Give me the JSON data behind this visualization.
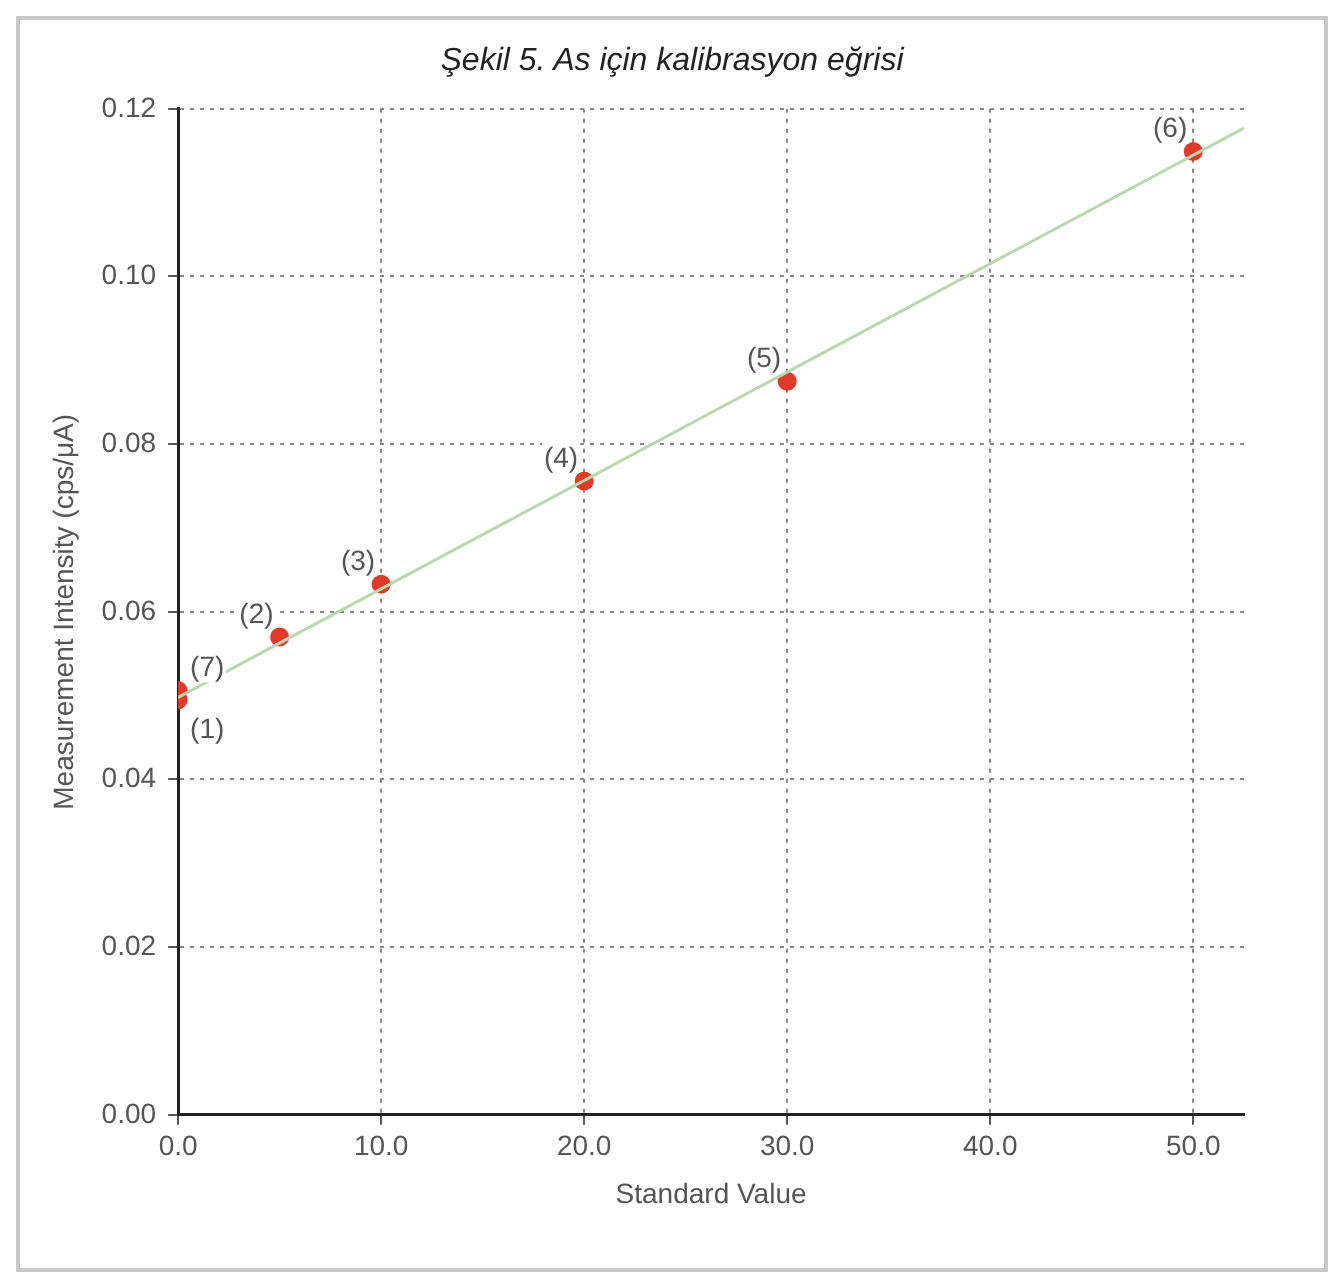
{
  "chart_data": {
    "type": "scatter",
    "title": "Şekil 5.  As için kalibrasyon eğrisi",
    "xlabel": "Standard Value",
    "ylabel": "Measurement Intensity (cps/μA)",
    "series": [
      {
        "type": "line",
        "color": "#b9d8ae",
        "x": [
          0,
          52.5
        ],
        "values": [
          0.0498,
          0.1177
        ],
        "marker": "none"
      },
      {
        "type": "scatter",
        "color": "#e03a2a",
        "x": [
          0,
          5,
          10,
          20,
          30,
          50,
          0
        ],
        "values": [
          0.0495,
          0.057,
          0.0633,
          0.0756,
          0.0875,
          0.1149,
          0.0506
        ],
        "marker": "circle"
      }
    ],
    "xlim": [
      0,
      52.5
    ],
    "ylim": [
      0,
      0.12
    ],
    "xticks": [
      {
        "value": 0,
        "label": "0.0"
      },
      {
        "value": 10,
        "label": "10.0"
      },
      {
        "value": 20,
        "label": "20.0"
      },
      {
        "value": 30,
        "label": "30.0"
      },
      {
        "value": 40,
        "label": "40.0"
      },
      {
        "value": 50,
        "label": "50.0"
      }
    ],
    "yticks": [
      {
        "value": 0,
        "label": "0.00"
      },
      {
        "value": 0.02,
        "label": "0.02"
      },
      {
        "value": 0.04,
        "label": "0.04"
      },
      {
        "value": 0.06,
        "label": "0.06"
      },
      {
        "value": 0.08,
        "label": "0.08"
      },
      {
        "value": 0.1,
        "label": "0.10"
      },
      {
        "value": 0.12,
        "label": "0.12"
      }
    ],
    "grid": true,
    "legend": false,
    "annotations": [
      {
        "text": "(7)",
        "x": 0,
        "y": 0.0506
      },
      {
        "text": "(1)",
        "x": 0,
        "y": 0.0495
      },
      {
        "text": "(2)",
        "x": 5,
        "y": 0.057
      },
      {
        "text": "(3)",
        "x": 10,
        "y": 0.0633
      },
      {
        "text": "(4)",
        "x": 20,
        "y": 0.0756
      },
      {
        "text": "(5)",
        "x": 30,
        "y": 0.0875
      },
      {
        "text": "(6)",
        "x": 50,
        "y": 0.1149
      }
    ]
  }
}
